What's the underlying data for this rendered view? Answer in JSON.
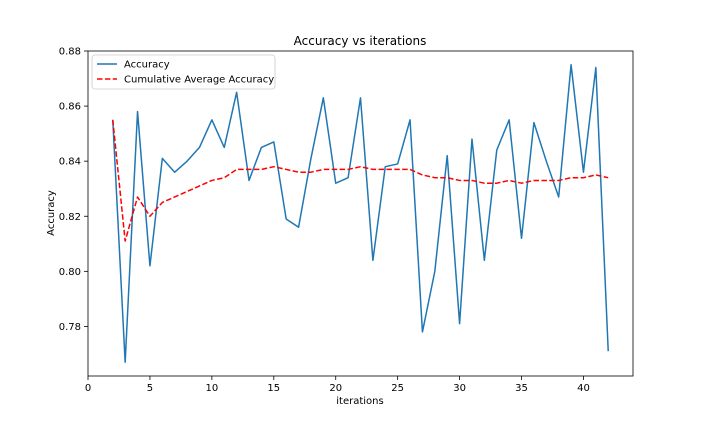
{
  "chart_data": {
    "type": "line",
    "title": "Accuracy vs iterations",
    "xlabel": "iterations",
    "ylabel": "Accuracy",
    "xlim": [
      0,
      44
    ],
    "ylim": [
      0.762,
      0.88
    ],
    "xticks": [
      0,
      5,
      10,
      15,
      20,
      25,
      30,
      35,
      40
    ],
    "yticks": [
      0.78,
      0.8,
      0.82,
      0.84,
      0.86,
      0.88
    ],
    "ytick_labels": [
      "0.78",
      "0.80",
      "0.82",
      "0.84",
      "0.86",
      "0.88"
    ],
    "legend_position": "upper-left",
    "x": [
      2,
      3,
      4,
      5,
      6,
      7,
      8,
      9,
      10,
      11,
      12,
      13,
      14,
      15,
      16,
      17,
      18,
      19,
      20,
      21,
      22,
      23,
      24,
      25,
      26,
      27,
      28,
      29,
      30,
      31,
      32,
      33,
      34,
      35,
      36,
      37,
      38,
      39,
      40,
      41,
      42
    ],
    "series": [
      {
        "name": "Accuracy",
        "color": "#1f77b4",
        "style": "solid",
        "values": [
          0.855,
          0.767,
          0.858,
          0.802,
          0.841,
          0.836,
          0.84,
          0.845,
          0.855,
          0.845,
          0.865,
          0.833,
          0.845,
          0.847,
          0.819,
          0.816,
          0.841,
          0.863,
          0.832,
          0.834,
          0.863,
          0.804,
          0.838,
          0.839,
          0.855,
          0.778,
          0.8,
          0.842,
          0.781,
          0.848,
          0.804,
          0.844,
          0.855,
          0.812,
          0.854,
          0.84,
          0.827,
          0.875,
          0.836,
          0.874,
          0.771
        ]
      },
      {
        "name": "Cumulative Average Accuracy",
        "color": "#ff0000",
        "style": "dashed",
        "values": [
          0.855,
          0.811,
          0.827,
          0.82,
          0.825,
          0.827,
          0.829,
          0.831,
          0.833,
          0.834,
          0.837,
          0.837,
          0.837,
          0.838,
          0.837,
          0.836,
          0.836,
          0.837,
          0.837,
          0.837,
          0.838,
          0.837,
          0.837,
          0.837,
          0.837,
          0.835,
          0.834,
          0.834,
          0.833,
          0.833,
          0.832,
          0.832,
          0.833,
          0.832,
          0.833,
          0.833,
          0.833,
          0.834,
          0.834,
          0.835,
          0.834
        ]
      }
    ]
  }
}
